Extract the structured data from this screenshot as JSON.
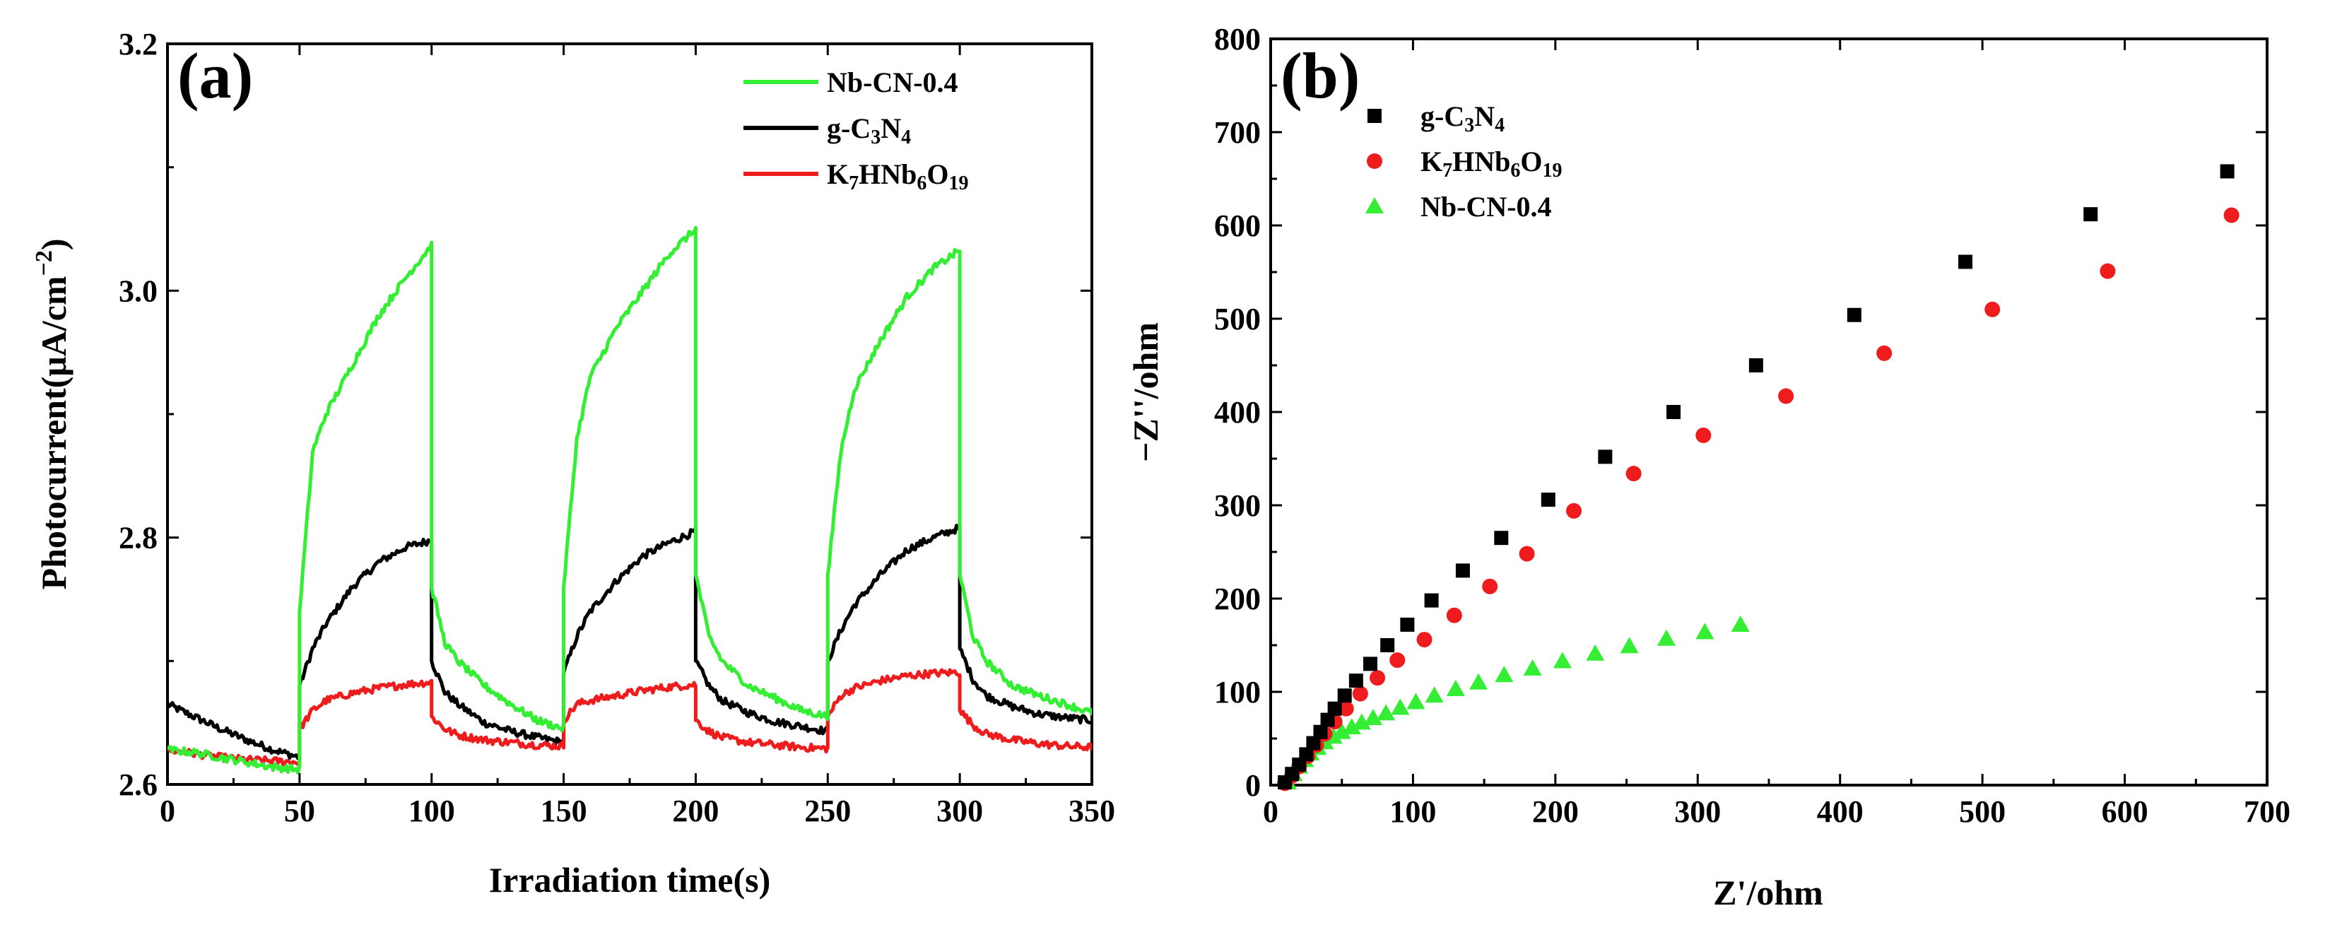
{
  "chart_data": [
    {
      "panel": "(a)",
      "type": "line",
      "title": "",
      "xlabel": "Irradiation time(s)",
      "ylabel": "Photocurrent(μA/cm⁻²)",
      "ylabel_parts": {
        "main": "Photocurrent(μA/cm",
        "sup": "−2",
        "close": ")"
      },
      "xlim": [
        0,
        350
      ],
      "ylim": [
        2.6,
        3.2
      ],
      "xticks": [
        0,
        50,
        100,
        150,
        200,
        250,
        300,
        350
      ],
      "xtick_labels": [
        "0",
        "50",
        "100",
        "150",
        "200",
        "250",
        "300",
        "350"
      ],
      "yticks": [
        2.6,
        2.8,
        3.0,
        3.2
      ],
      "ytick_labels": [
        "2.6",
        "2.8",
        "3.0",
        "3.2"
      ],
      "legend_position": "top-right",
      "light_on_intervals": [
        [
          50,
          100
        ],
        [
          150,
          200
        ],
        [
          250,
          300
        ]
      ],
      "series": [
        {
          "name": "Nb-CN-0.4",
          "label_parts": [
            "Nb-CN-0.4"
          ],
          "color": "#33ee33",
          "x": [
            0,
            10,
            20,
            30,
            40,
            50,
            50,
            55,
            60,
            70,
            80,
            90,
            100,
            100,
            105,
            110,
            120,
            130,
            140,
            150,
            150,
            155,
            160,
            170,
            180,
            190,
            200,
            200,
            205,
            210,
            220,
            230,
            240,
            250,
            250,
            255,
            260,
            270,
            280,
            290,
            300,
            300,
            305,
            310,
            320,
            330,
            340,
            350
          ],
          "values": [
            2.628,
            2.626,
            2.622,
            2.618,
            2.614,
            2.612,
            2.74,
            2.87,
            2.9,
            2.94,
            2.98,
            3.01,
            3.037,
            2.76,
            2.715,
            2.7,
            2.68,
            2.665,
            2.652,
            2.645,
            2.76,
            2.88,
            2.93,
            2.97,
            3.0,
            3.03,
            3.05,
            2.77,
            2.72,
            2.7,
            2.68,
            2.67,
            2.66,
            2.655,
            2.77,
            2.87,
            2.92,
            2.96,
            2.995,
            3.018,
            3.033,
            2.77,
            2.72,
            2.7,
            2.68,
            2.672,
            2.665,
            2.658
          ]
        },
        {
          "name": "g-C3N4",
          "label_parts": [
            "g-C",
            "3",
            "N",
            "4"
          ],
          "color": "#000000",
          "x": [
            0,
            10,
            20,
            30,
            40,
            50,
            50,
            55,
            60,
            70,
            80,
            90,
            100,
            100,
            105,
            110,
            120,
            130,
            140,
            150,
            150,
            155,
            160,
            170,
            180,
            190,
            200,
            200,
            205,
            210,
            220,
            230,
            240,
            250,
            250,
            255,
            260,
            270,
            280,
            290,
            300,
            300,
            305,
            310,
            320,
            330,
            340,
            350
          ],
          "values": [
            2.665,
            2.655,
            2.645,
            2.636,
            2.628,
            2.622,
            2.68,
            2.71,
            2.73,
            2.76,
            2.78,
            2.792,
            2.798,
            2.7,
            2.675,
            2.665,
            2.65,
            2.643,
            2.638,
            2.634,
            2.69,
            2.72,
            2.74,
            2.765,
            2.785,
            2.796,
            2.805,
            2.7,
            2.68,
            2.668,
            2.658,
            2.651,
            2.647,
            2.643,
            2.7,
            2.725,
            2.745,
            2.77,
            2.79,
            2.8,
            2.808,
            2.71,
            2.685,
            2.672,
            2.663,
            2.657,
            2.654,
            2.652
          ]
        },
        {
          "name": "K7HNb6O19",
          "label_parts": [
            "K",
            "7",
            "HNb",
            "6",
            "O",
            "19"
          ],
          "color": "#ee1c1c",
          "x": [
            0,
            10,
            20,
            30,
            40,
            50,
            50,
            55,
            60,
            70,
            80,
            90,
            100,
            100,
            105,
            110,
            120,
            130,
            140,
            150,
            150,
            155,
            160,
            170,
            180,
            190,
            200,
            200,
            205,
            210,
            220,
            230,
            240,
            250,
            250,
            255,
            260,
            270,
            280,
            290,
            300,
            300,
            305,
            310,
            320,
            330,
            340,
            350
          ],
          "values": [
            2.628,
            2.625,
            2.622,
            2.62,
            2.619,
            2.618,
            2.645,
            2.66,
            2.668,
            2.674,
            2.678,
            2.681,
            2.683,
            2.655,
            2.645,
            2.64,
            2.636,
            2.634,
            2.632,
            2.631,
            2.652,
            2.665,
            2.668,
            2.672,
            2.676,
            2.679,
            2.681,
            2.652,
            2.643,
            2.638,
            2.634,
            2.632,
            2.63,
            2.629,
            2.655,
            2.672,
            2.678,
            2.684,
            2.688,
            2.69,
            2.691,
            2.66,
            2.648,
            2.641,
            2.636,
            2.633,
            2.631,
            2.63
          ]
        }
      ]
    },
    {
      "panel": "(b)",
      "type": "scatter",
      "title": "",
      "xlabel": "Z'/ohm",
      "ylabel": "−Z''/ohm",
      "xlim": [
        0,
        700
      ],
      "ylim": [
        0,
        800
      ],
      "xticks": [
        0,
        100,
        200,
        300,
        400,
        500,
        600,
        700
      ],
      "xtick_labels": [
        "0",
        "100",
        "200",
        "300",
        "400",
        "500",
        "600",
        "700"
      ],
      "yticks": [
        0,
        100,
        200,
        300,
        400,
        500,
        600,
        700,
        800
      ],
      "ytick_labels": [
        "0",
        "100",
        "200",
        "300",
        "400",
        "500",
        "600",
        "700",
        "800"
      ],
      "legend_position": "top-left",
      "series": [
        {
          "name": "g-C3N4",
          "label_parts": [
            "g-C",
            "3",
            "N",
            "4"
          ],
          "marker": "square",
          "color": "#000000",
          "x": [
            10,
            15,
            20,
            25,
            30,
            35,
            40,
            45,
            52,
            60,
            70,
            82,
            96,
            113,
            135,
            162,
            195,
            235,
            283,
            341,
            410,
            488,
            576,
            672
          ],
          "y": [
            3,
            12,
            22,
            33,
            45,
            57,
            70,
            82,
            96,
            112,
            130,
            150,
            172,
            198,
            230,
            265,
            306,
            352,
            400,
            450,
            504,
            561,
            612,
            658
          ]
        },
        {
          "name": "K7HNb6O19",
          "label_parts": [
            "K",
            "7",
            "HNb",
            "6",
            "O",
            "19"
          ],
          "marker": "circle",
          "color": "#ee1c1c",
          "x": [
            10,
            15,
            20,
            26,
            32,
            38,
            45,
            53,
            63,
            75,
            89,
            108,
            129,
            154,
            180,
            213,
            255,
            304,
            362,
            431,
            507,
            588,
            675
          ],
          "y": [
            2,
            10,
            20,
            31,
            43,
            55,
            68,
            82,
            98,
            115,
            134,
            156,
            182,
            213,
            248,
            294,
            334,
            375,
            417,
            463,
            510,
            551,
            611
          ]
        },
        {
          "name": "Nb-CN-0.4",
          "label_parts": [
            "Nb-CN-0.4"
          ],
          "marker": "triangle",
          "color": "#33ee33",
          "x": [
            12,
            16,
            20,
            24,
            28,
            33,
            38,
            44,
            50,
            57,
            64,
            72,
            81,
            91,
            102,
            115,
            130,
            146,
            164,
            184,
            205,
            228,
            252,
            278,
            305,
            330
          ],
          "y": [
            3,
            12,
            20,
            27,
            34,
            40,
            46,
            52,
            57,
            62,
            67,
            72,
            77,
            83,
            89,
            96,
            103,
            110,
            118,
            125,
            133,
            141,
            149,
            157,
            164,
            172
          ]
        }
      ]
    }
  ]
}
